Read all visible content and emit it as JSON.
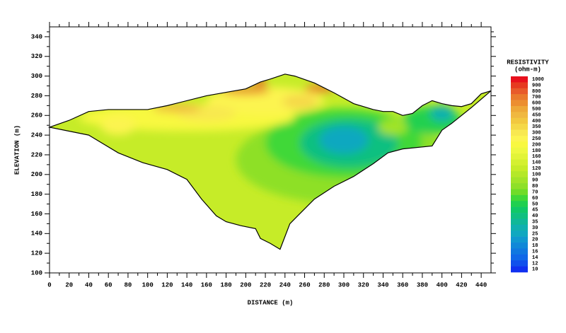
{
  "chart_data": {
    "type": "contour",
    "x_label": "DISTANCE (m)",
    "y_label": "ELEVATION (m)",
    "xlim": [
      0,
      450
    ],
    "ylim": [
      100,
      350
    ],
    "xticks": [
      0,
      20,
      40,
      60,
      80,
      100,
      120,
      140,
      160,
      180,
      200,
      220,
      240,
      260,
      280,
      300,
      320,
      340,
      360,
      380,
      400,
      420,
      440
    ],
    "yticks": [
      100,
      120,
      140,
      160,
      180,
      200,
      220,
      240,
      260,
      280,
      300,
      320,
      340
    ],
    "outline": {
      "x": [
        0,
        20,
        40,
        60,
        100,
        120,
        160,
        200,
        215,
        225,
        240,
        250,
        270,
        290,
        310,
        330,
        340,
        350,
        360,
        370,
        380,
        390,
        400,
        410,
        420,
        430,
        440,
        450,
        430,
        410,
        400,
        390,
        360,
        345,
        330,
        310,
        290,
        270,
        255,
        245,
        235,
        225,
        215,
        210,
        195,
        180,
        170,
        155,
        140,
        120,
        95,
        70,
        40
      ],
      "y": [
        248,
        255,
        264,
        266,
        266,
        270,
        280,
        287,
        294,
        297,
        302,
        300,
        293,
        283,
        272,
        266,
        264,
        264,
        260,
        262,
        270,
        275,
        272,
        270,
        269,
        272,
        282,
        285,
        268,
        252,
        245,
        229,
        226,
        222,
        211,
        198,
        188,
        175,
        160,
        150,
        124,
        130,
        135,
        145,
        148,
        152,
        158,
        175,
        195,
        205,
        212,
        222,
        240
      ]
    },
    "zones": [
      {
        "x": 300,
        "y": 215,
        "x_extent": 110,
        "y_extent": 45,
        "value": 80
      },
      {
        "x": 300,
        "y": 232,
        "x_extent": 80,
        "y_extent": 35,
        "value": 60
      },
      {
        "x": 305,
        "y": 232,
        "x_extent": 50,
        "y_extent": 25,
        "value": 40
      },
      {
        "x": 300,
        "y": 235,
        "x_extent": 25,
        "y_extent": 14,
        "value": 25
      },
      {
        "x": 390,
        "y": 255,
        "x_extent": 30,
        "y_extent": 14,
        "value": 50
      },
      {
        "x": 400,
        "y": 262,
        "x_extent": 12,
        "y_extent": 8,
        "value": 30
      },
      {
        "x": 350,
        "y": 248,
        "x_extent": 15,
        "y_extent": 8,
        "value": 90
      },
      {
        "x": 140,
        "y": 258,
        "x_extent": 110,
        "y_extent": 14,
        "value": 200
      },
      {
        "x": 220,
        "y": 275,
        "x_extent": 60,
        "y_extent": 14,
        "value": 250
      },
      {
        "x": 70,
        "y": 250,
        "x_extent": 18,
        "y_extent": 10,
        "value": 250
      },
      {
        "x": 160,
        "y": 262,
        "x_extent": 30,
        "y_extent": 8,
        "value": 300
      },
      {
        "x": 255,
        "y": 274,
        "x_extent": 18,
        "y_extent": 7,
        "value": 350
      },
      {
        "x": 130,
        "y": 267,
        "x_extent": 25,
        "y_extent": 4,
        "value": 450
      },
      {
        "x": 200,
        "y": 285,
        "x_extent": 25,
        "y_extent": 4,
        "value": 600
      },
      {
        "x": 275,
        "y": 287,
        "x_extent": 15,
        "y_extent": 4,
        "value": 700
      },
      {
        "x": 215,
        "y": 293,
        "x_extent": 7,
        "y_extent": 3,
        "value": 1000
      }
    ],
    "legend": {
      "title": "RESISTIVITY",
      "unit": "(ohm-m)",
      "levels": [
        1000,
        900,
        800,
        700,
        600,
        500,
        450,
        400,
        350,
        300,
        250,
        200,
        180,
        160,
        140,
        120,
        100,
        90,
        80,
        70,
        60,
        50,
        45,
        40,
        35,
        30,
        25,
        20,
        18,
        16,
        14,
        12,
        10
      ],
      "colors": [
        "#e8101c",
        "#e63a20",
        "#e85a2a",
        "#ea7a2c",
        "#ec8e30",
        "#eea838",
        "#f0b840",
        "#f2c840",
        "#f5d848",
        "#f8e850",
        "#fcf450",
        "#f8f840",
        "#eef840",
        "#e2f438",
        "#d4f030",
        "#c6ec28",
        "#b4e828",
        "#a2e428",
        "#8ee028",
        "#70dc28",
        "#40d838",
        "#20d050",
        "#10c868",
        "#10c080",
        "#10b898",
        "#10b0b0",
        "#10a8c0",
        "#1098d0",
        "#1088d8",
        "#1078e0",
        "#1068e8",
        "#1050ec",
        "#1030f0"
      ]
    }
  }
}
